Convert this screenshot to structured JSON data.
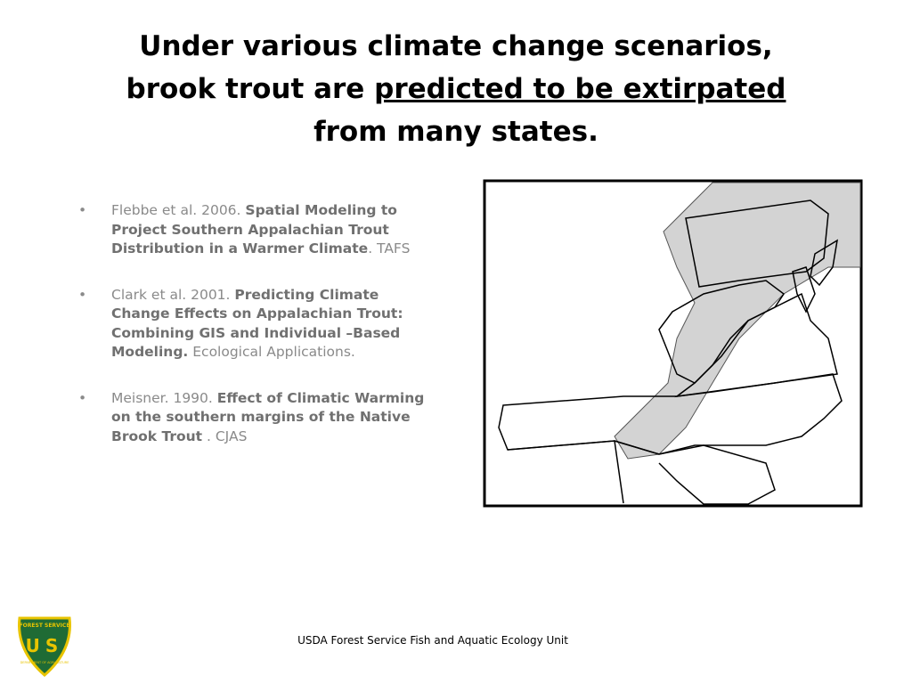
{
  "title": {
    "lines": [
      [
        {
          "text": "Under various climate change scenarios,",
          "underline": false
        }
      ],
      [
        {
          "text": "brook trout are ",
          "underline": false
        },
        {
          "text": "predicted to be extirpated",
          "underline": true
        }
      ],
      [
        {
          "text": "from many states.",
          "underline": false
        }
      ]
    ]
  },
  "bullets": [
    {
      "parts": [
        {
          "text": "Flebbe et al. 2006. ",
          "bold": false
        },
        {
          "text": "Spatial Modeling to Project Southern Appalachian Trout Distribution in a Warmer Climate",
          "bold": true
        },
        {
          "text": ". TAFS",
          "bold": false
        }
      ]
    },
    {
      "parts": [
        {
          "text": "Clark et al. 2001. ",
          "bold": false
        },
        {
          "text": "Predicting Climate Change Effects on Appalachian Trout: Combining GIS and Individual –Based Modeling.",
          "bold": true
        },
        {
          "text": " Ecological Applications.",
          "bold": false
        }
      ]
    },
    {
      "parts": [
        {
          "text": "Meisner. 1990. ",
          "bold": false
        },
        {
          "text": "Effect of Climatic Warming on the southern margins of the Native Brook Trout",
          "bold": true
        },
        {
          "text": " . CJAS",
          "bold": false
        }
      ]
    }
  ],
  "footer": "USDA Forest Service Fish and Aquatic Ecology Unit",
  "logo": {
    "top": "FOREST SERVICE",
    "letters": "US",
    "bottom": "DEPARTMENT OF AGRICULTURE"
  }
}
